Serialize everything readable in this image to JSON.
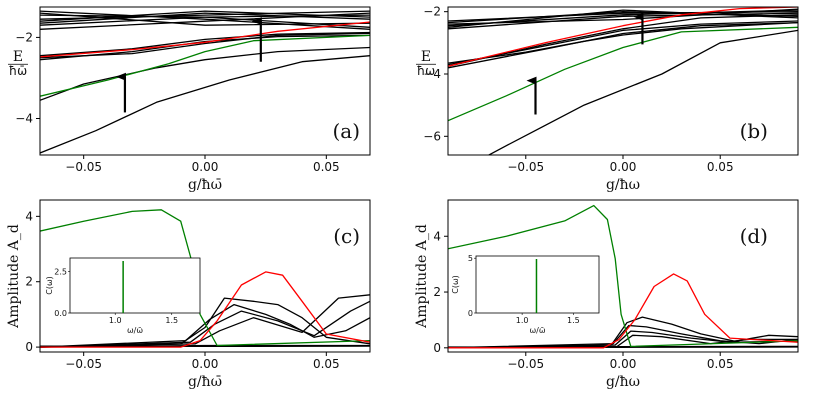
{
  "chart_data": [
    {
      "panel": "(a)",
      "type": "line",
      "ylabel_num": "E",
      "ylabel_den": "ħω̄",
      "xlabel": "g/ħω̄",
      "xlim": [
        -0.068,
        0.068
      ],
      "ylim": [
        -4.9,
        -1.25
      ],
      "xticks": [
        "−0.05",
        "0.00",
        "0.05"
      ],
      "xtick_values": [
        -0.05,
        0.0,
        0.05
      ],
      "yticks": [
        "−2",
        "−4"
      ],
      "ytick_values": [
        -2,
        -4
      ],
      "series": [
        {
          "color": "#000000",
          "x": [
            -0.068,
            0,
            0.068
          ],
          "y": [
            -1.35,
            -1.55,
            -1.8
          ]
        },
        {
          "color": "#000000",
          "x": [
            -0.068,
            0,
            0.068
          ],
          "y": [
            -1.55,
            -1.45,
            -1.35
          ]
        },
        {
          "color": "#000000",
          "x": [
            -0.068,
            0,
            0.068
          ],
          "y": [
            -1.45,
            -1.5,
            -1.75
          ]
        },
        {
          "color": "#000000",
          "x": [
            -0.068,
            0,
            0.068
          ],
          "y": [
            -1.65,
            -1.4,
            -1.55
          ]
        },
        {
          "color": "#000000",
          "x": [
            -0.068,
            0,
            0.068
          ],
          "y": [
            -1.8,
            -1.6,
            -1.4
          ]
        },
        {
          "color": "#000000",
          "x": [
            -0.068,
            0,
            0.068
          ],
          "y": [
            -1.4,
            -1.7,
            -1.65
          ]
        },
        {
          "color": "#000000",
          "x": [
            -0.068,
            0,
            0.068
          ],
          "y": [
            -1.7,
            -1.5,
            -1.45
          ]
        },
        {
          "color": "#000000",
          "x": [
            -0.068,
            0,
            0.068
          ],
          "y": [
            -1.6,
            -1.35,
            -1.5
          ]
        },
        {
          "color": "#000000",
          "x": [
            -0.068,
            -0.03,
            0,
            0.03,
            0.068
          ],
          "y": [
            -2.45,
            -2.28,
            -2.05,
            -1.92,
            -1.88
          ]
        },
        {
          "color": "#000000",
          "x": [
            -0.068,
            -0.03,
            0,
            0.03,
            0.068
          ],
          "y": [
            -2.55,
            -2.35,
            -2.1,
            -1.98,
            -1.95
          ]
        },
        {
          "color": "#000000",
          "x": [
            -0.068,
            -0.03,
            0,
            0.03,
            0.068
          ],
          "y": [
            -2.5,
            -2.4,
            -2.15,
            -1.95,
            -1.9
          ]
        },
        {
          "color": "#000000",
          "x": [
            -0.068,
            -0.05,
            -0.02,
            0,
            0.03,
            0.068
          ],
          "y": [
            -3.55,
            -3.15,
            -2.75,
            -2.55,
            -2.35,
            -2.25
          ]
        },
        {
          "color": "#000000",
          "x": [
            -0.068,
            -0.045,
            -0.02,
            0.01,
            0.04,
            0.068
          ],
          "y": [
            -4.85,
            -4.3,
            -3.6,
            -3.05,
            -2.6,
            -2.45
          ]
        },
        {
          "color": "#ff0000",
          "x": [
            -0.068,
            -0.03,
            0,
            0.03,
            0.068
          ],
          "y": [
            -2.48,
            -2.3,
            -2.12,
            -1.85,
            -1.62
          ]
        },
        {
          "color": "#008000",
          "x": [
            -0.068,
            -0.04,
            -0.015,
            0,
            0.02,
            0.068
          ],
          "y": [
            -3.45,
            -3.05,
            -2.65,
            -2.35,
            -2.08,
            -1.95
          ]
        }
      ],
      "arrows": [
        {
          "x": -0.033,
          "y_from": -3.85,
          "y_to": -2.92
        },
        {
          "x": 0.023,
          "y_from": -2.6,
          "y_to": -1.55
        }
      ]
    },
    {
      "panel": "(b)",
      "type": "line",
      "ylabel_num": "E",
      "ylabel_den": "ħω",
      "xlabel": "g/ħω",
      "xlim": [
        -0.09,
        0.09
      ],
      "ylim": [
        -6.6,
        -1.85
      ],
      "xticks": [
        "−0.05",
        "0.00",
        "0.05"
      ],
      "xtick_values": [
        -0.05,
        0.0,
        0.05
      ],
      "yticks": [
        "−2",
        "−4",
        "−6"
      ],
      "ytick_values": [
        -2,
        -4,
        -6
      ],
      "series": [
        {
          "color": "#000000",
          "x": [
            -0.09,
            0,
            0.09
          ],
          "y": [
            -2.45,
            -2.1,
            -1.95
          ]
        },
        {
          "color": "#000000",
          "x": [
            -0.09,
            0,
            0.09
          ],
          "y": [
            -2.35,
            -2.0,
            -2.15
          ]
        },
        {
          "color": "#000000",
          "x": [
            -0.09,
            0,
            0.09
          ],
          "y": [
            -2.55,
            -2.15,
            -2.05
          ]
        },
        {
          "color": "#000000",
          "x": [
            -0.09,
            0,
            0.09
          ],
          "y": [
            -2.4,
            -2.25,
            -1.92
          ]
        },
        {
          "color": "#000000",
          "x": [
            -0.09,
            0,
            0.09
          ],
          "y": [
            -2.5,
            -1.95,
            -2.2
          ]
        },
        {
          "color": "#000000",
          "x": [
            -0.09,
            0,
            0.09
          ],
          "y": [
            -2.3,
            -2.05,
            -2.0
          ]
        },
        {
          "color": "#000000",
          "x": [
            -0.09,
            -0.04,
            0,
            0.04,
            0.09
          ],
          "y": [
            -3.7,
            -3.1,
            -2.6,
            -2.4,
            -2.3
          ]
        },
        {
          "color": "#000000",
          "x": [
            -0.09,
            -0.04,
            0,
            0.04,
            0.09
          ],
          "y": [
            -3.8,
            -3.2,
            -2.7,
            -2.45,
            -2.35
          ]
        },
        {
          "color": "#000000",
          "x": [
            -0.09,
            -0.04,
            0,
            0.04,
            0.09
          ],
          "y": [
            -3.75,
            -3.05,
            -2.55,
            -2.2,
            -2.1
          ]
        },
        {
          "color": "#000000",
          "x": [
            -0.09,
            -0.05,
            -0.02,
            0,
            0.03,
            0.09
          ],
          "y": [
            -3.65,
            -3.3,
            -2.95,
            -2.75,
            -2.55,
            -2.35
          ]
        },
        {
          "color": "#000000",
          "x": [
            -0.09,
            -0.06,
            -0.02,
            0.02,
            0.05,
            0.09
          ],
          "y": [
            -7.3,
            -6.3,
            -5.0,
            -4.0,
            -3.0,
            -2.6
          ]
        },
        {
          "color": "#ff0000",
          "x": [
            -0.09,
            -0.04,
            0,
            0.03,
            0.06,
            0.09
          ],
          "y": [
            -3.75,
            -3.0,
            -2.45,
            -2.1,
            -1.9,
            -1.85
          ]
        },
        {
          "color": "#008000",
          "x": [
            -0.09,
            -0.06,
            -0.03,
            0,
            0.03,
            0.09
          ],
          "y": [
            -5.5,
            -4.7,
            -3.85,
            -3.15,
            -2.65,
            -2.5
          ]
        }
      ],
      "arrows": [
        {
          "x": -0.045,
          "y_from": -5.3,
          "y_to": -4.15
        },
        {
          "x": 0.01,
          "y_from": -3.05,
          "y_to": -2.1
        }
      ]
    },
    {
      "panel": "(c)",
      "type": "line",
      "ylabel_num": "",
      "ylabel_den": "",
      "ylabel": "Amplitude A_d",
      "xlabel": "g/ħω̄",
      "xlim": [
        -0.068,
        0.068
      ],
      "ylim": [
        -0.15,
        4.5
      ],
      "xticks": [
        "−0.05",
        "0.00",
        "0.05"
      ],
      "xtick_values": [
        -0.05,
        0.0,
        0.05
      ],
      "yticks": [
        "0",
        "2",
        "4"
      ],
      "ytick_values": [
        0,
        2,
        4
      ],
      "series": [
        {
          "color": "#008000",
          "x": [
            -0.068,
            -0.05,
            -0.03,
            -0.018,
            -0.01,
            -0.005,
            -0.002,
            0.005,
            0.068
          ],
          "y": [
            3.55,
            3.85,
            4.15,
            4.2,
            3.85,
            2.5,
            1.0,
            0.05,
            0.2
          ]
        },
        {
          "color": "#ff0000",
          "x": [
            -0.068,
            -0.01,
            -0.002,
            0.005,
            0.015,
            0.025,
            0.032,
            0.04,
            0.05,
            0.068
          ],
          "y": [
            0,
            0,
            0.2,
            0.8,
            1.9,
            2.3,
            2.2,
            1.4,
            0.4,
            0.15
          ]
        },
        {
          "color": "#000000",
          "x": [
            -0.068,
            -0.01,
            0,
            0.008,
            0.02,
            0.03,
            0.04,
            0.05,
            0.068
          ],
          "y": [
            0,
            0.1,
            0.6,
            1.5,
            1.4,
            1.3,
            0.9,
            0.3,
            0.1
          ]
        },
        {
          "color": "#000000",
          "x": [
            -0.068,
            -0.008,
            0.002,
            0.012,
            0.025,
            0.035,
            0.045,
            0.058,
            0.068
          ],
          "y": [
            0,
            0.2,
            0.85,
            1.3,
            1.0,
            0.7,
            0.3,
            0.5,
            0.9
          ]
        },
        {
          "color": "#000000",
          "x": [
            -0.068,
            -0.006,
            0.004,
            0.015,
            0.03,
            0.045,
            0.06,
            0.068
          ],
          "y": [
            0,
            0.15,
            0.7,
            1.1,
            0.8,
            0.35,
            1.1,
            1.4
          ]
        },
        {
          "color": "#000000",
          "x": [
            -0.068,
            -0.004,
            0.006,
            0.02,
            0.04,
            0.055,
            0.068
          ],
          "y": [
            0,
            0.1,
            0.5,
            0.9,
            0.45,
            1.5,
            1.6
          ]
        },
        {
          "color": "#000000",
          "x": [
            -0.068,
            0,
            0.068
          ],
          "y": [
            0,
            0.05,
            0.05
          ]
        },
        {
          "color": "#000000",
          "x": [
            -0.068,
            0,
            0.068
          ],
          "y": [
            0.03,
            0.02,
            0.03
          ]
        }
      ],
      "inset": {
        "ylabel": "C(ω)",
        "xlabel": "ω/ω̄",
        "xlim": [
          0.6,
          1.75
        ],
        "ylim": [
          0,
          3.3
        ],
        "xticks": [
          "1.0",
          "1.5"
        ],
        "xtick_values": [
          1.0,
          1.5
        ],
        "yticks": [
          "0.0",
          "2.5"
        ],
        "ytick_values": [
          0,
          2.5
        ],
        "line_x": 1.07
      }
    },
    {
      "panel": "(d)",
      "type": "line",
      "ylabel_num": "",
      "ylabel_den": "",
      "ylabel": "Amplitude A_d",
      "xlabel": "g/ħω",
      "xlim": [
        -0.09,
        0.09
      ],
      "ylim": [
        -0.15,
        5.3
      ],
      "xticks": [
        "−0.05",
        "0.00",
        "0.05"
      ],
      "xtick_values": [
        -0.05,
        0.0,
        0.05
      ],
      "yticks": [
        "0",
        "2",
        "4"
      ],
      "ytick_values": [
        0,
        2,
        4
      ],
      "series": [
        {
          "color": "#008000",
          "x": [
            -0.09,
            -0.06,
            -0.03,
            -0.015,
            -0.008,
            -0.004,
            -0.001,
            0.004,
            0.09
          ],
          "y": [
            3.55,
            4.0,
            4.55,
            5.1,
            4.6,
            3.2,
            1.2,
            0.05,
            0.25
          ]
        },
        {
          "color": "#ff0000",
          "x": [
            -0.09,
            -0.01,
            -0.002,
            0.006,
            0.016,
            0.026,
            0.033,
            0.042,
            0.055,
            0.09
          ],
          "y": [
            0,
            0,
            0.3,
            1.0,
            2.2,
            2.65,
            2.4,
            1.2,
            0.35,
            0.2
          ]
        },
        {
          "color": "#000000",
          "x": [
            -0.09,
            -0.006,
            0.002,
            0.01,
            0.025,
            0.04,
            0.06,
            0.09
          ],
          "y": [
            0,
            0.1,
            0.9,
            1.1,
            0.85,
            0.5,
            0.2,
            0.25
          ]
        },
        {
          "color": "#000000",
          "x": [
            -0.09,
            -0.005,
            0.003,
            0.012,
            0.03,
            0.05,
            0.07,
            0.09
          ],
          "y": [
            0,
            0.15,
            0.8,
            0.75,
            0.5,
            0.25,
            0.15,
            0.3
          ]
        },
        {
          "color": "#000000",
          "x": [
            -0.09,
            -0.004,
            0.004,
            0.015,
            0.035,
            0.055,
            0.075,
            0.09
          ],
          "y": [
            0,
            0.1,
            0.6,
            0.55,
            0.35,
            0.2,
            0.45,
            0.4
          ]
        },
        {
          "color": "#000000",
          "x": [
            -0.09,
            -0.003,
            0.005,
            0.02,
            0.045,
            0.065,
            0.09
          ],
          "y": [
            0,
            0.05,
            0.45,
            0.4,
            0.15,
            0.3,
            0.3
          ]
        },
        {
          "color": "#000000",
          "x": [
            -0.09,
            0,
            0.09
          ],
          "y": [
            0,
            0.04,
            0.05
          ]
        },
        {
          "color": "#000000",
          "x": [
            -0.09,
            0,
            0.09
          ],
          "y": [
            0.03,
            0.02,
            0.03
          ]
        }
      ],
      "inset": {
        "ylabel": "C(ω)",
        "xlabel": "ω/ω̄",
        "xlim": [
          0.55,
          1.75
        ],
        "ylim": [
          0,
          5.2
        ],
        "xticks": [
          "1.0",
          "1.5"
        ],
        "xtick_values": [
          1.0,
          1.5
        ],
        "yticks": [
          "0",
          "5"
        ],
        "ytick_values": [
          0,
          5
        ],
        "line_x": 1.14
      }
    }
  ]
}
